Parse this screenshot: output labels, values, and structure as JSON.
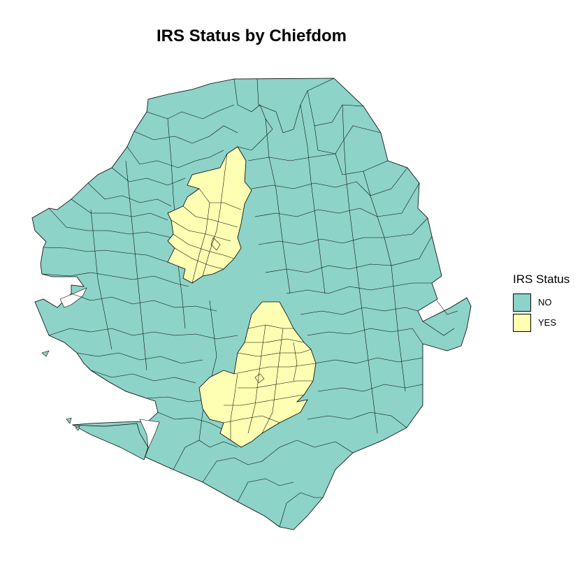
{
  "title": "IRS Status by Chiefdom",
  "legend": {
    "title": "IRS Status",
    "items": [
      {
        "label": "NO",
        "color": "#8dd3c7"
      },
      {
        "label": "YES",
        "color": "#ffffb3"
      }
    ]
  },
  "colors": {
    "no": "#8dd3c7",
    "yes": "#ffffb3",
    "border": "#000000"
  }
}
